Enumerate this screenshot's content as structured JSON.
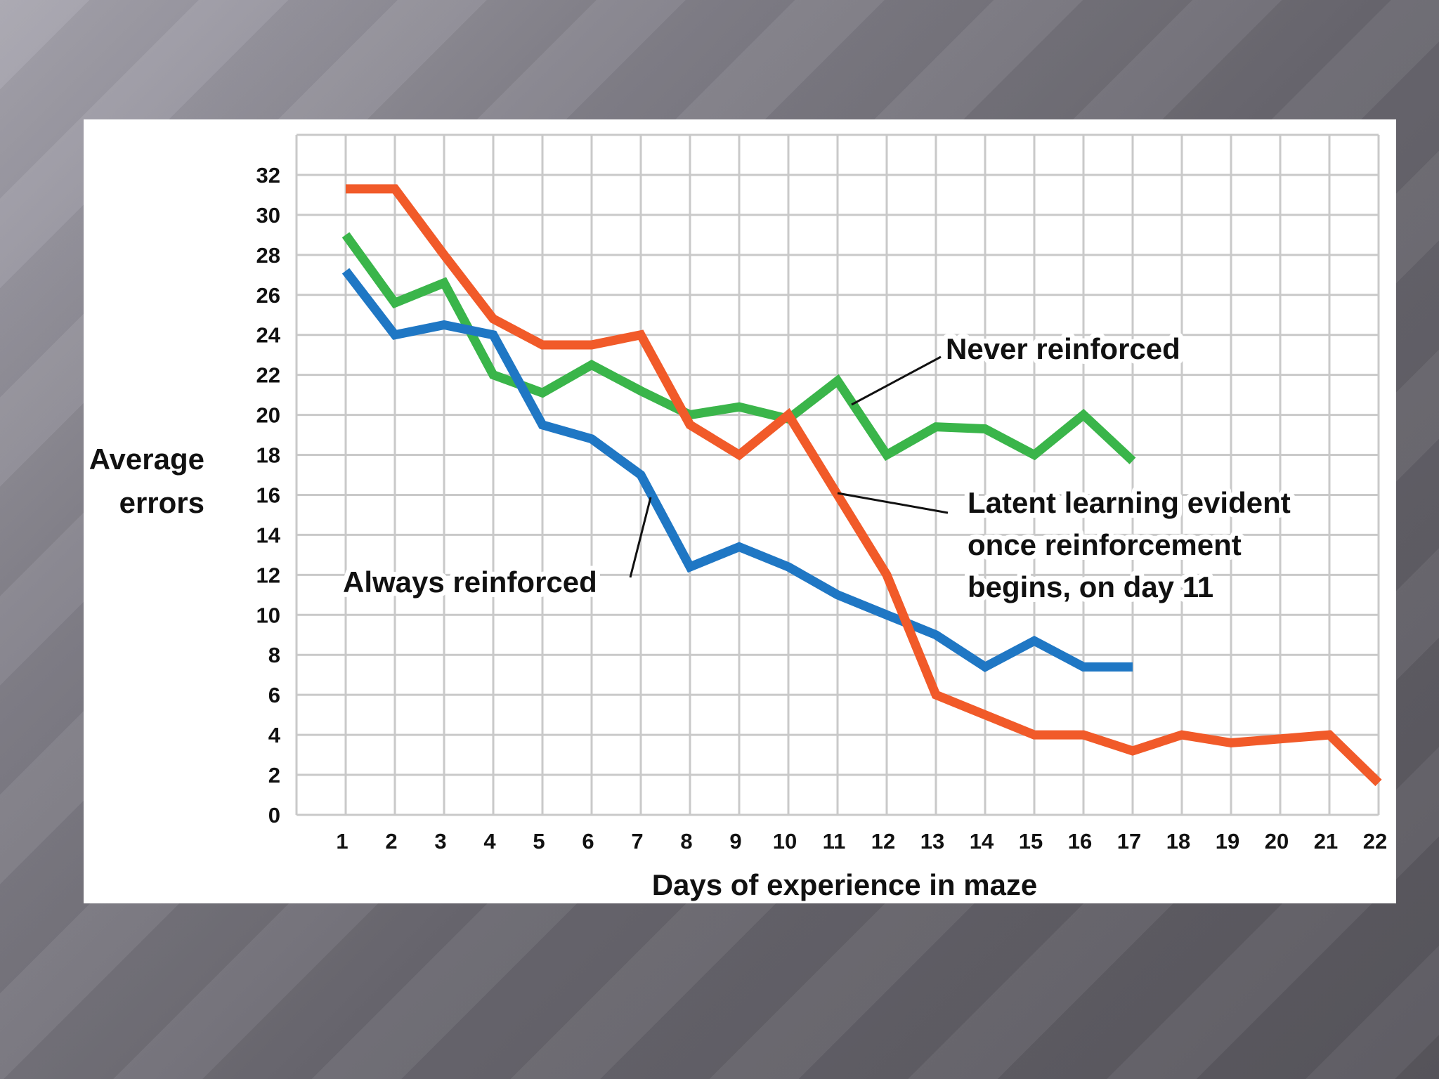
{
  "chart_data": {
    "type": "line",
    "title": "",
    "xlabel": "Days of experience in maze",
    "ylabel_lines": [
      "Average",
      "errors"
    ],
    "x": [
      1,
      2,
      3,
      4,
      5,
      6,
      7,
      8,
      9,
      10,
      11,
      12,
      13,
      14,
      15,
      16,
      17,
      18,
      19,
      20,
      21,
      22
    ],
    "xlim": [
      0,
      22
    ],
    "ylim": [
      0,
      34
    ],
    "yticks": [
      0,
      2,
      4,
      6,
      8,
      10,
      12,
      14,
      16,
      18,
      20,
      22,
      24,
      26,
      28,
      30,
      32
    ],
    "grid": true,
    "series": [
      {
        "name": "Never reinforced",
        "color": "#3ab54a",
        "x": [
          1,
          2,
          3,
          4,
          5,
          6,
          7,
          8,
          9,
          10,
          11,
          12,
          13,
          14,
          15,
          16,
          17
        ],
        "values": [
          29,
          25.6,
          26.6,
          22,
          21.1,
          22.5,
          21.2,
          20,
          20.4,
          19.8,
          21.7,
          18,
          19.4,
          19.3,
          18,
          20,
          17.7
        ]
      },
      {
        "name": "Always reinforced",
        "color": "#1f77c4",
        "x": [
          1,
          2,
          3,
          4,
          5,
          6,
          7,
          8,
          9,
          10,
          11,
          12,
          13,
          14,
          15,
          16,
          17
        ],
        "values": [
          27.2,
          24,
          24.5,
          24,
          19.5,
          18.8,
          17,
          12.4,
          13.4,
          12.4,
          11,
          10,
          9,
          7.4,
          8.7,
          7.4,
          7.4
        ]
      },
      {
        "name": "Latent learning",
        "color": "#f15a29",
        "x": [
          1,
          2,
          3,
          4,
          5,
          6,
          7,
          8,
          9,
          10,
          11,
          12,
          13,
          14,
          15,
          16,
          17,
          18,
          19,
          20,
          21,
          22
        ],
        "values": [
          31.3,
          31.3,
          28,
          24.8,
          23.5,
          23.5,
          24,
          19.5,
          18,
          20,
          16,
          12,
          6,
          5,
          4,
          4,
          3.2,
          4,
          3.6,
          3.8,
          4,
          1.6
        ]
      }
    ],
    "annotations": [
      {
        "id": "never",
        "text_lines": [
          "Never reinforced"
        ]
      },
      {
        "id": "always",
        "text_lines": [
          "Always reinforced"
        ]
      },
      {
        "id": "latent",
        "text_lines": [
          "Latent learning evident",
          "once reinforcement",
          "begins, on day 11"
        ]
      }
    ]
  }
}
